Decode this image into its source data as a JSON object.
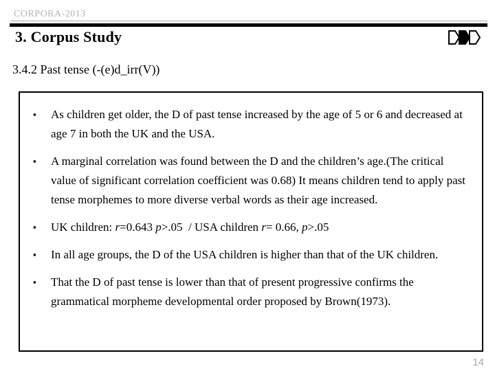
{
  "slide": {
    "header": {
      "label": "CORPORA-2013"
    },
    "title": "3. Corpus Study",
    "subtitle": "3.4.2 Past tense (-(e)d_irr(V))",
    "page_number": "14",
    "colors": {
      "header_gray": "#b4b4b4",
      "page_number_gray": "#a8a8a8",
      "rule_black": "#000000",
      "background": "#ffffff"
    },
    "icons": {
      "header_shapes": [
        {
          "name": "d-pentagon-outline-icon",
          "fill": "#ffffff",
          "stroke": "#000000"
        },
        {
          "name": "d-pentagon-filled-icon",
          "fill": "#000000",
          "stroke": "#000000"
        },
        {
          "name": "d-pentagon-outline-icon",
          "fill": "#ffffff",
          "stroke": "#000000"
        }
      ]
    },
    "box": {
      "marker": "▪",
      "bullets": [
        {
          "segments": [
            {
              "text": "As children get older, the D of past tense increased by the age of 5 or 6 and decreased at age 7 in both the UK and the USA."
            }
          ]
        },
        {
          "segments": [
            {
              "text": "A marginal correlation was found between the D and the children’s age.(The critical value of significant correlation coefficient was 0.68) It means children tend to apply past tense morphemes to more diverse verbal words as their age increased."
            }
          ]
        },
        {
          "segments": [
            {
              "text": "UK children: "
            },
            {
              "text": "r",
              "italic": true
            },
            {
              "text": "=0.643 "
            },
            {
              "text": "p",
              "italic": true
            },
            {
              "text": ">.05  / USA children "
            },
            {
              "text": "r",
              "italic": true
            },
            {
              "text": "= 0.66, "
            },
            {
              "text": "p",
              "italic": true
            },
            {
              "text": ">.05"
            }
          ]
        },
        {
          "segments": [
            {
              "text": "In all age groups, the D of the USA children is higher than that of the UK children."
            }
          ]
        },
        {
          "segments": [
            {
              "text": "That the D of past tense is lower than that of present progressive confirms the grammatical morpheme developmental order proposed by Brown(1973)."
            }
          ]
        }
      ]
    }
  }
}
